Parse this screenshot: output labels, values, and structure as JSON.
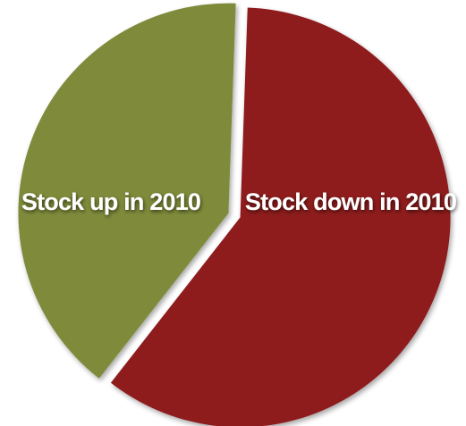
{
  "chart_data": {
    "type": "pie",
    "title": "",
    "slices": [
      {
        "label": "Stock up in 2010",
        "value": 40,
        "color": "#7f8b3a"
      },
      {
        "label": "Stock down in 2010",
        "value": 60,
        "color": "#8e1a1e"
      }
    ],
    "legend": "none",
    "exploded": true
  }
}
